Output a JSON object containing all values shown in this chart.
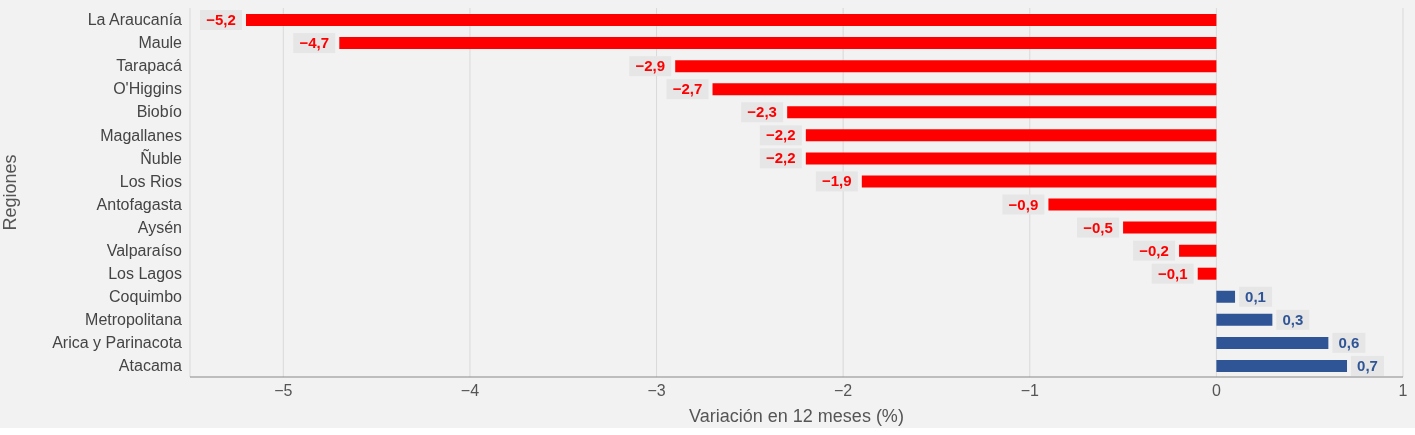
{
  "chart_data": {
    "type": "bar",
    "orientation": "horizontal",
    "xlabel": "Variación en 12 meses (%)",
    "ylabel": "Regiones",
    "categories": [
      "La Araucanía",
      "Maule",
      "Tarapacá",
      "O'Higgins",
      "Biobío",
      "Magallanes",
      "Ñuble",
      "Los Rios",
      "Antofagasta",
      "Aysén",
      "Valparaíso",
      "Los Lagos",
      "Coquimbo",
      "Metropolitana",
      "Arica y Parinacota",
      "Atacama"
    ],
    "values": [
      -5.2,
      -4.7,
      -2.9,
      -2.7,
      -2.3,
      -2.2,
      -2.2,
      -1.9,
      -0.9,
      -0.5,
      -0.2,
      -0.1,
      0.1,
      0.3,
      0.6,
      0.7
    ],
    "colors": [
      "#ff0000",
      "#ff0000",
      "#ff0000",
      "#ff0000",
      "#ff0000",
      "#ff0000",
      "#ff0000",
      "#ff0000",
      "#ff0000",
      "#ff0000",
      "#ff0000",
      "#ff0000",
      "#2f5597",
      "#2f5597",
      "#2f5597",
      "#2f5597"
    ],
    "value_labels": [
      "−5,2",
      "−4,7",
      "−2,9",
      "−2,7",
      "−2,3",
      "−2,2",
      "−2,2",
      "−1,9",
      "−0,9",
      "−0,5",
      "−0,2",
      "−0,1",
      "0,1",
      "0,3",
      "0,6",
      "0,7"
    ],
    "xlim": [
      -5.5,
      1
    ],
    "xticks": [
      {
        "value": -5,
        "label": "−5"
      },
      {
        "value": -4,
        "label": "−4"
      },
      {
        "value": -3,
        "label": "−3"
      },
      {
        "value": -2,
        "label": "−2"
      },
      {
        "value": -1,
        "label": "−1"
      },
      0,
      1
    ],
    "grid": "x"
  }
}
